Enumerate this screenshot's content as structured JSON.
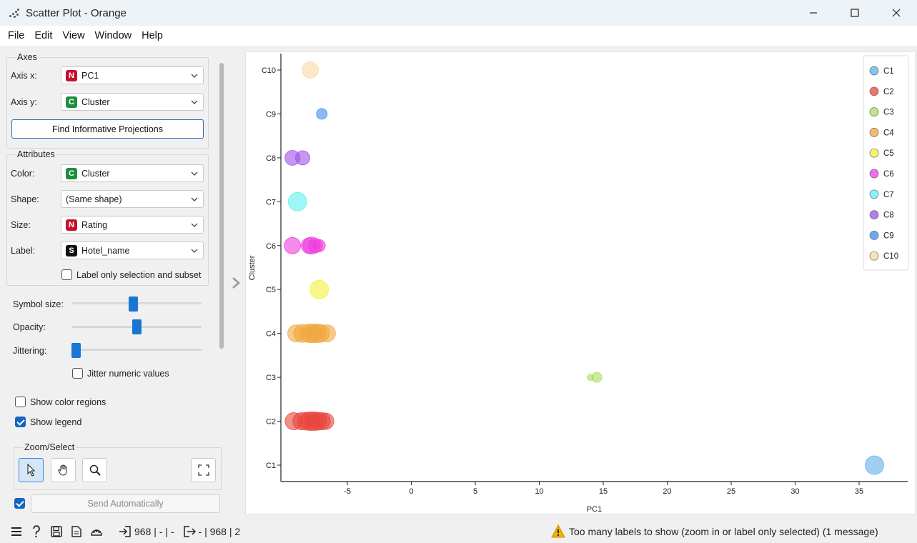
{
  "window": {
    "title": "Scatter Plot - Orange"
  },
  "menu": [
    "File",
    "Edit",
    "View",
    "Window",
    "Help"
  ],
  "axes": {
    "group_title": "Axes",
    "x_label": "Axis x:",
    "x_value": "PC1",
    "x_type": "N",
    "y_label": "Axis y:",
    "y_value": "Cluster",
    "y_type": "C",
    "find_button": "Find Informative Projections"
  },
  "attributes": {
    "group_title": "Attributes",
    "color_label": "Color:",
    "color_value": "Cluster",
    "color_type": "C",
    "shape_label": "Shape:",
    "shape_value": "(Same shape)",
    "size_label": "Size:",
    "size_value": "Rating",
    "size_type": "N",
    "label_label": "Label:",
    "label_value": "Hotel_name",
    "label_type": "S",
    "label_only_selection": "Label only selection and subset",
    "label_only_selection_checked": false
  },
  "sliders": {
    "symbol_size_label": "Symbol size:",
    "symbol_size_level": 0.47,
    "opacity_label": "Opacity:",
    "opacity_level": 0.5,
    "jittering_label": "Jittering:",
    "jittering_level": 0.0,
    "jitter_numeric_label": "Jitter numeric values",
    "jitter_numeric_checked": false
  },
  "options": {
    "show_color_regions": "Show color regions",
    "show_color_regions_checked": false,
    "show_legend": "Show legend",
    "show_legend_checked": true
  },
  "zoom_select": {
    "title": "Zoom/Select"
  },
  "send": {
    "label": "Send Automatically",
    "checked": true
  },
  "status": {
    "input_summary": "968 | - | -",
    "output_summary": "- | 968 | 2",
    "warning": "Too many labels to show (zoom in or label only selected) (1 message)"
  },
  "colors": {
    "badge_N": "#c8102e",
    "badge_C": "#1e8e3e",
    "badge_S": "#111111",
    "accent": "#1976d2"
  },
  "chart_data": {
    "type": "scatter",
    "xlabel": "PC1",
    "ylabel": "Cluster",
    "x_ticks": [
      -5,
      0,
      5,
      10,
      15,
      20,
      25,
      30,
      35
    ],
    "y_categories": [
      "C1",
      "C2",
      "C3",
      "C4",
      "C5",
      "C6",
      "C7",
      "C8",
      "C9",
      "C10"
    ],
    "xlim": [
      -10.2,
      38.8
    ],
    "legend": {
      "placement": "top-right",
      "entries": [
        {
          "name": "C1",
          "color": "#5fb0e8"
        },
        {
          "name": "C2",
          "color": "#e8453c"
        },
        {
          "name": "C3",
          "color": "#a8e05a"
        },
        {
          "name": "C4",
          "color": "#f0a73c"
        },
        {
          "name": "C5",
          "color": "#f4f03a"
        },
        {
          "name": "C6",
          "color": "#f03ce0"
        },
        {
          "name": "C7",
          "color": "#5ef0f0"
        },
        {
          "name": "C8",
          "color": "#a050e8"
        },
        {
          "name": "C9",
          "color": "#3c8ce8"
        },
        {
          "name": "C10",
          "color": "#f8d8a0"
        }
      ]
    },
    "points": [
      {
        "x": 36.2,
        "cluster": "C1",
        "rating": 1.0
      },
      {
        "x": -9.2,
        "cluster": "C2",
        "rating": 0.9
      },
      {
        "x": -8.6,
        "cluster": "C2",
        "rating": 0.9
      },
      {
        "x": -8.2,
        "cluster": "C2",
        "rating": 0.95
      },
      {
        "x": -7.9,
        "cluster": "C2",
        "rating": 1.0
      },
      {
        "x": -7.6,
        "cluster": "C2",
        "rating": 1.0
      },
      {
        "x": -7.3,
        "cluster": "C2",
        "rating": 0.95
      },
      {
        "x": -7.0,
        "cluster": "C2",
        "rating": 0.9
      },
      {
        "x": -6.7,
        "cluster": "C2",
        "rating": 0.85
      },
      {
        "x": 14.0,
        "cluster": "C3",
        "rating": 0.15
      },
      {
        "x": 14.5,
        "cluster": "C3",
        "rating": 0.4
      },
      {
        "x": -9.0,
        "cluster": "C4",
        "rating": 0.9
      },
      {
        "x": -8.5,
        "cluster": "C4",
        "rating": 0.95
      },
      {
        "x": -8.0,
        "cluster": "C4",
        "rating": 1.0
      },
      {
        "x": -7.7,
        "cluster": "C4",
        "rating": 1.0
      },
      {
        "x": -7.4,
        "cluster": "C4",
        "rating": 1.0
      },
      {
        "x": -7.1,
        "cluster": "C4",
        "rating": 0.95
      },
      {
        "x": -6.6,
        "cluster": "C4",
        "rating": 0.9
      },
      {
        "x": -7.2,
        "cluster": "C5",
        "rating": 1.0
      },
      {
        "x": -9.3,
        "cluster": "C6",
        "rating": 0.85
      },
      {
        "x": -8.0,
        "cluster": "C6",
        "rating": 0.8
      },
      {
        "x": -7.8,
        "cluster": "C6",
        "rating": 0.9
      },
      {
        "x": -7.5,
        "cluster": "C6",
        "rating": 0.7
      },
      {
        "x": -7.2,
        "cluster": "C6",
        "rating": 0.55
      },
      {
        "x": -8.9,
        "cluster": "C7",
        "rating": 1.0
      },
      {
        "x": -9.3,
        "cluster": "C8",
        "rating": 0.75
      },
      {
        "x": -8.5,
        "cluster": "C8",
        "rating": 0.7
      },
      {
        "x": -7.0,
        "cluster": "C9",
        "rating": 0.45
      },
      {
        "x": -7.9,
        "cluster": "C10",
        "rating": 0.85
      }
    ]
  }
}
